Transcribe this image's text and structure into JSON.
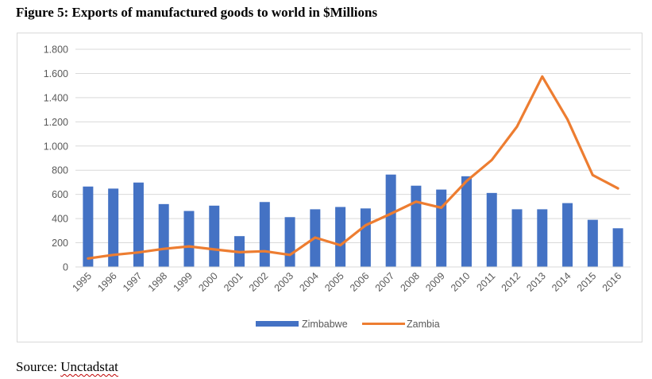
{
  "figure_title": "Figure 5: Exports of manufactured goods to world in $Millions",
  "source": {
    "label": "Source: ",
    "name": "Unctadstat"
  },
  "colors": {
    "zimbabwe": "#4472c4",
    "zambia": "#ed7d31",
    "grid": "#d9d9d9",
    "axis_text": "#595959"
  },
  "chart_data": {
    "type": "bar",
    "title": "",
    "xlabel": "",
    "ylabel": "",
    "ylim": [
      0,
      1800
    ],
    "yticks": [
      0,
      200,
      400,
      600,
      800,
      1000,
      1200,
      1400,
      1600,
      1800
    ],
    "ytick_labels": [
      "0",
      "200",
      "400",
      "600",
      "800",
      "1.000",
      "1.200",
      "1.400",
      "1.600",
      "1.800"
    ],
    "grid": true,
    "legend": "bottom",
    "categories": [
      "1995",
      "1996",
      "1997",
      "1998",
      "1999",
      "2000",
      "2001",
      "2002",
      "2003",
      "2004",
      "2005",
      "2006",
      "2007",
      "2008",
      "2009",
      "2010",
      "2011",
      "2012",
      "2013",
      "2014",
      "2015",
      "2016"
    ],
    "series": [
      {
        "name": "Zimbabwe",
        "type": "bar",
        "values": [
          665,
          648,
          698,
          520,
          463,
          507,
          255,
          537,
          412,
          477,
          496,
          484,
          764,
          672,
          640,
          750,
          612,
          477,
          477,
          528,
          390,
          320
        ]
      },
      {
        "name": "Zambia",
        "type": "line",
        "values": [
          70,
          100,
          120,
          150,
          170,
          145,
          122,
          130,
          100,
          243,
          180,
          345,
          440,
          540,
          490,
          710,
          885,
          1160,
          1575,
          1220,
          760,
          650
        ]
      }
    ]
  }
}
